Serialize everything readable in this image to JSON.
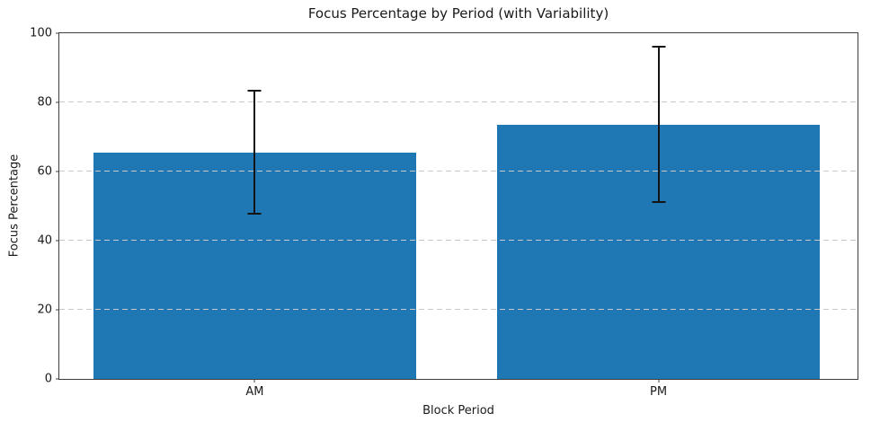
{
  "chart_data": {
    "type": "bar",
    "title": "Focus Percentage by Period (with Variability)",
    "xlabel": "Block Period",
    "ylabel": "Focus Percentage",
    "categories": [
      "AM",
      "PM"
    ],
    "values": [
      65.5,
      73.6
    ],
    "errors": [
      17.8,
      22.5
    ],
    "ylim": [
      0,
      100
    ],
    "yticks": [
      0,
      20,
      40,
      60,
      80,
      100
    ],
    "grid": "horizontal dashed gridlines drawn above bars",
    "legend": "none",
    "bar_color": "#1f77b4",
    "error_bar_color": "#141414",
    "grid_color": "#c9c9c9"
  }
}
